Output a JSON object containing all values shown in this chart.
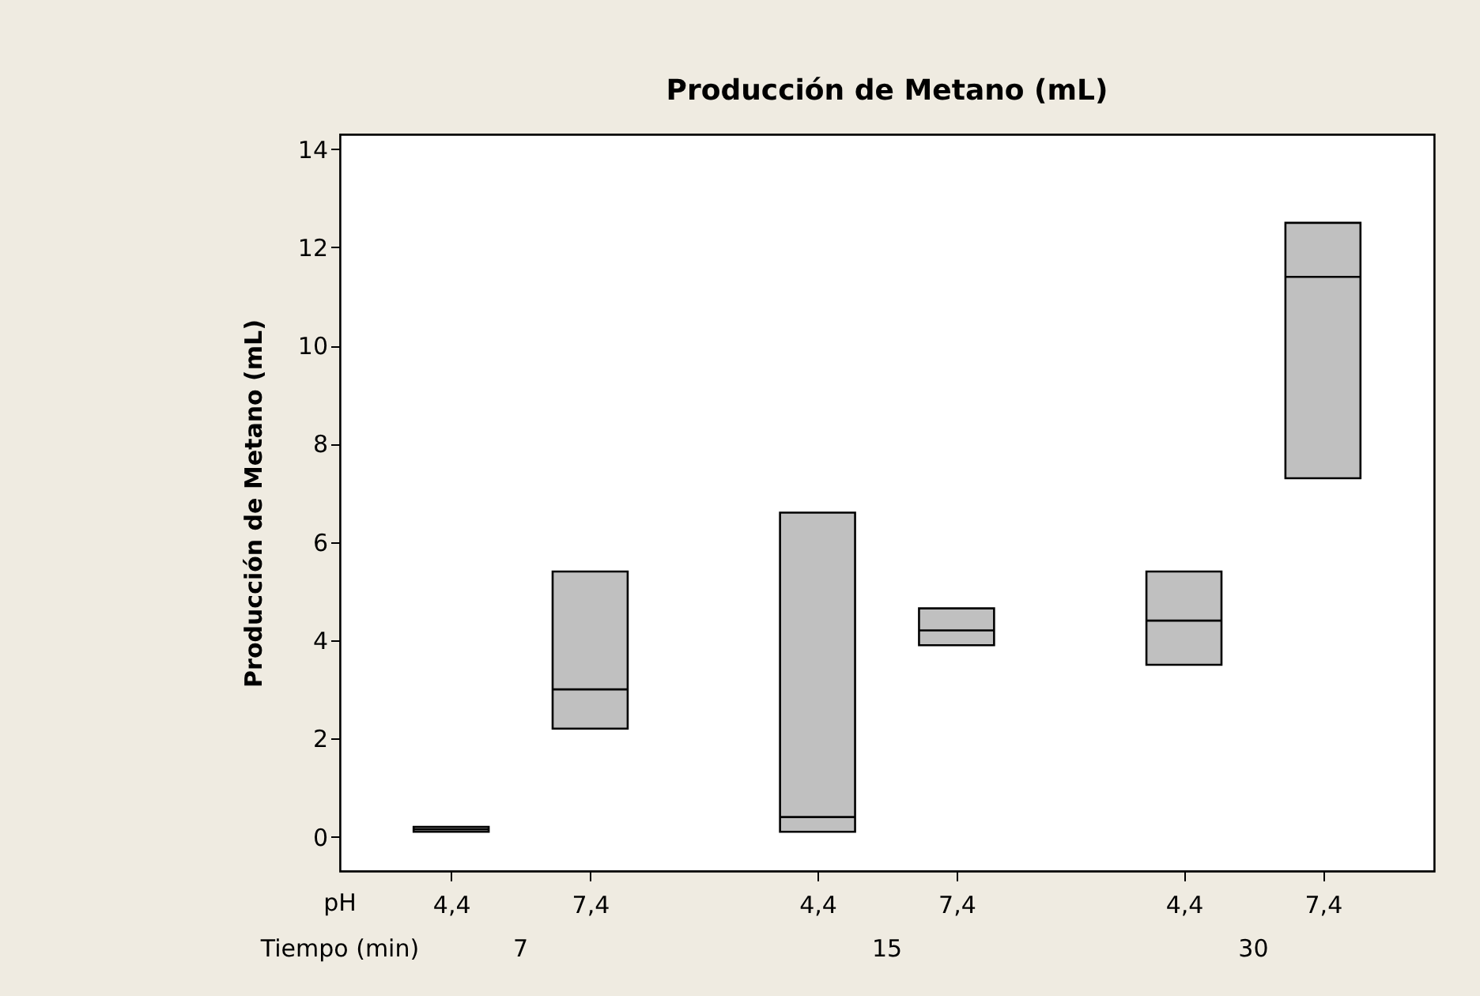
{
  "chart_data": {
    "type": "box",
    "title": "Producción de Metano (mL)",
    "ylabel": "Producción de Metano (mL)",
    "categories": [
      "4,4",
      "7,4",
      "4,4",
      "7,4",
      "4,4",
      "7,4"
    ],
    "annotations": [
      "pH",
      "Tiempo (min)",
      "7",
      "15",
      "30"
    ],
    "color": "#c0c0c0",
    "boxes": [
      {
        "low": 0.1,
        "q1": 0.1,
        "median": 0.15,
        "q3": 0.2,
        "high": 0.2
      },
      {
        "low": 2.2,
        "q1": 2.2,
        "median": 3.0,
        "q3": 5.4,
        "high": 5.4
      },
      {
        "low": 0.1,
        "q1": 0.1,
        "median": 0.4,
        "q3": 6.6,
        "high": 6.6
      },
      {
        "low": 3.9,
        "q1": 3.9,
        "median": 4.2,
        "q3": 4.65,
        "high": 4.65
      },
      {
        "low": 3.5,
        "q1": 3.5,
        "median": 4.4,
        "q3": 5.4,
        "high": 5.4
      },
      {
        "low": 7.3,
        "q1": 7.3,
        "median": 11.4,
        "q3": 12.5,
        "high": 12.5
      }
    ],
    "ylim": [
      -0.7,
      14.3
    ],
    "yticks": [
      0,
      2,
      4,
      6,
      8,
      10,
      12,
      14
    ],
    "grid": false
  }
}
